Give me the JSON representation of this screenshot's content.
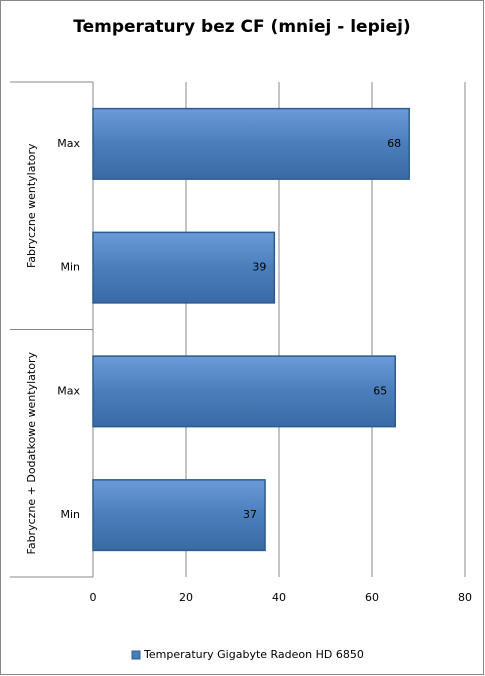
{
  "chart_data": {
    "type": "bar",
    "orientation": "horizontal",
    "title": "Temperatury bez CF (mniej - lepiej)",
    "groups": [
      {
        "name": "Fabryczne wentylatory",
        "categories": [
          "Max",
          "Min"
        ]
      },
      {
        "name": "Fabryczne + Dodatkowe  wentylatory",
        "categories": [
          "Max",
          "Min"
        ]
      }
    ],
    "series": [
      {
        "name": "Temperatury Gigabyte Radeon HD 6850",
        "color": "#4a7ebb",
        "values": [
          68,
          39,
          65,
          37
        ]
      }
    ],
    "xlim": [
      0,
      80
    ],
    "xticks": [
      0,
      20,
      40,
      60,
      80
    ],
    "grid": true,
    "legend": "bottom"
  }
}
